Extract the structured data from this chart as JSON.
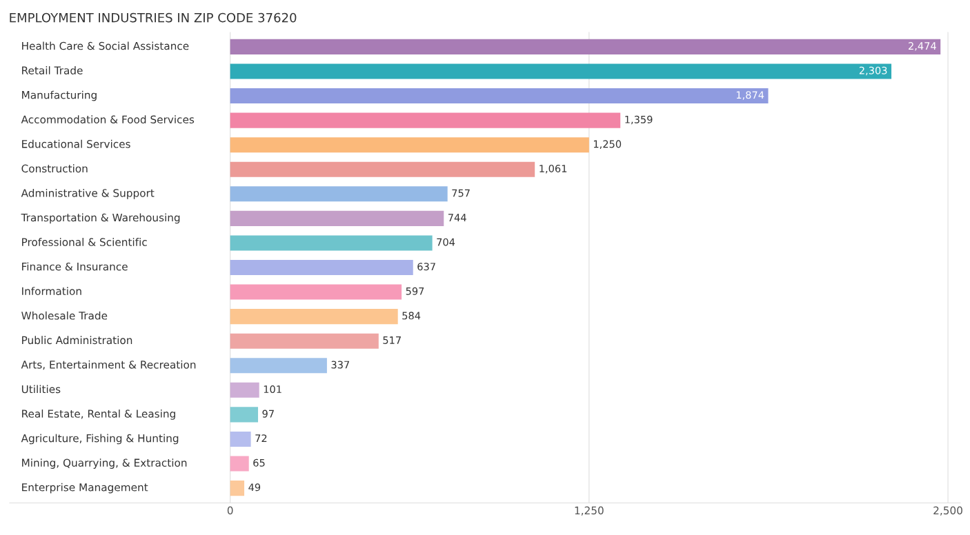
{
  "chart_data": {
    "type": "bar",
    "orientation": "horizontal",
    "title": "EMPLOYMENT INDUSTRIES IN ZIP CODE 37620",
    "categories": [
      "Health Care & Social Assistance",
      "Retail Trade",
      "Manufacturing",
      "Accommodation & Food Services",
      "Educational Services",
      "Construction",
      "Administrative & Support",
      "Transportation & Warehousing",
      "Professional & Scientific",
      "Finance & Insurance",
      "Information",
      "Wholesale Trade",
      "Public Administration",
      "Arts, Entertainment & Recreation",
      "Utilities",
      "Real Estate, Rental & Leasing",
      "Agriculture, Fishing & Hunting",
      "Mining, Quarrying, & Extraction",
      "Enterprise Management"
    ],
    "values": [
      2474,
      2303,
      1874,
      1359,
      1250,
      1061,
      757,
      744,
      704,
      637,
      597,
      584,
      517,
      337,
      101,
      97,
      72,
      65,
      49
    ],
    "value_labels": [
      "2,474",
      "2,303",
      "1,874",
      "1,359",
      "1,250",
      "1,061",
      "757",
      "744",
      "704",
      "637",
      "597",
      "584",
      "517",
      "337",
      "101",
      "97",
      "72",
      "65",
      "49"
    ],
    "colors": [
      "#a87cb5",
      "#2eabb8",
      "#8f9be0",
      "#f284a5",
      "#fbb97a",
      "#ec9a96",
      "#94b9e6",
      "#c49fc8",
      "#6ec4cc",
      "#a9b2ea",
      "#f79ab8",
      "#fcc58f",
      "#eea5a3",
      "#a2c3ea",
      "#ceaed6",
      "#80ccd3",
      "#b5bdee",
      "#f8a8c4",
      "#fcc99a"
    ],
    "xlim": [
      -768,
      2543
    ],
    "xticks": [
      0,
      {
        "value": 1250,
        "label": "1,250"
      },
      {
        "value": 2500,
        "label": "2,500"
      }
    ],
    "grid": "x"
  }
}
